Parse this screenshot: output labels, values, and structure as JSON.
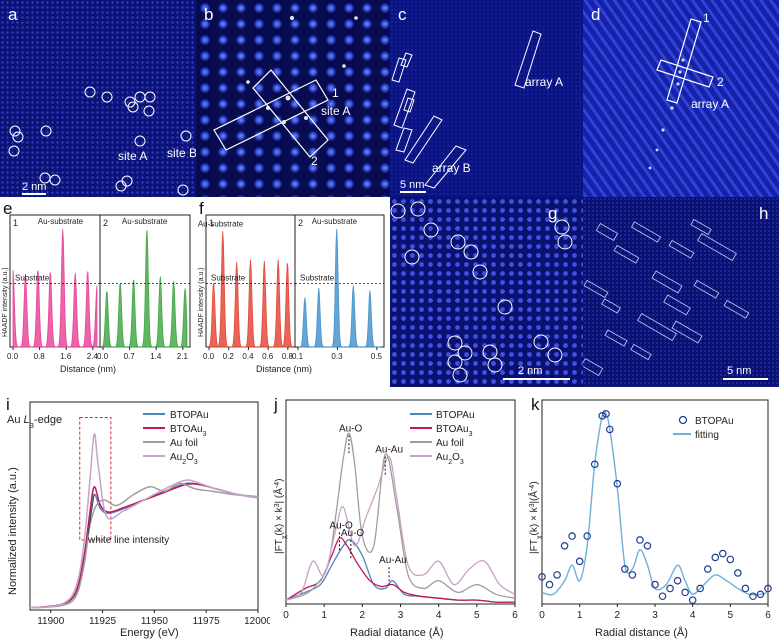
{
  "panels": {
    "a": {
      "letter": "a",
      "scale_bar": "2 nm",
      "labels": [
        "site A",
        "site B"
      ]
    },
    "b": {
      "letter": "b",
      "labels": [
        "1",
        "site A",
        "2"
      ]
    },
    "c": {
      "letter": "c",
      "scale_bar": "5 nm",
      "labels": [
        "array A",
        "array B"
      ]
    },
    "d": {
      "letter": "d",
      "labels": [
        "1",
        "2",
        "array A"
      ]
    },
    "g": {
      "letter": "g",
      "scale_bar": "2 nm"
    },
    "h": {
      "letter": "h",
      "scale_bar": "5 nm"
    }
  },
  "colors": {
    "btopau": "#4a86b8",
    "btoau3": "#c2185b",
    "au_foil": "#9e9e9e",
    "au2o3": "#c8a2c8",
    "pink": "#e8489a",
    "green": "#46a84a",
    "red": "#e34a3c",
    "blue": "#4a95cc",
    "micro_bg": "#0c1277"
  },
  "chart_data": [
    {
      "panel": "e",
      "type": "area",
      "ylabel": "HAADF intensity (a.u.)",
      "xlabel": "Distance (nm)",
      "subplots": [
        {
          "index_label": "1",
          "color": "pink",
          "xticks": [
            "0.0",
            "0.8",
            "1.6",
            "2.4"
          ],
          "xlim": [
            0,
            2.7
          ],
          "peak_x": [
            0.0,
            0.4,
            0.8,
            1.2,
            1.6,
            2.0,
            2.4,
            2.7
          ],
          "peak_y": [
            0.65,
            0.62,
            0.66,
            0.64,
            1.0,
            0.63,
            0.65,
            0.52
          ],
          "annotations": [
            "Au-substrate",
            "Substrate"
          ]
        },
        {
          "index_label": "2",
          "color": "green",
          "xticks": [
            "0.0",
            "0.7",
            "1.4",
            "2.1"
          ],
          "xlim": [
            0,
            2.2
          ],
          "peak_x": [
            0.1,
            0.45,
            0.8,
            1.15,
            1.5,
            1.85,
            2.15
          ],
          "peak_y": [
            0.48,
            0.55,
            0.58,
            1.0,
            0.6,
            0.56,
            0.5
          ],
          "annotations": [
            "Au-substrate"
          ]
        }
      ]
    },
    {
      "panel": "f",
      "type": "area",
      "ylabel": "HAADF intensity (a.u.)",
      "xlabel": "Distance (nm)",
      "subplots": [
        {
          "index_label": "1",
          "color": "red",
          "xticks": [
            "0.0",
            "0.2",
            "0.4",
            "0.6",
            "0.8"
          ],
          "xlim": [
            0,
            0.9
          ],
          "peak_x": [
            0.05,
            0.15,
            0.3,
            0.45,
            0.6,
            0.75,
            0.85
          ],
          "peak_y": [
            0.55,
            0.98,
            0.72,
            0.74,
            0.73,
            0.74,
            0.72
          ],
          "annotations": [
            "Au-substrate",
            "Substrate"
          ]
        },
        {
          "index_label": "2",
          "color": "blue",
          "xticks": [
            "0.1",
            "0.3",
            "0.5"
          ],
          "xlim": [
            0,
            0.6
          ],
          "peak_x": [
            0.05,
            0.15,
            0.28,
            0.4,
            0.52
          ],
          "peak_y": [
            0.42,
            0.5,
            1.0,
            0.52,
            0.48
          ],
          "annotations": [
            "Au-substrate",
            "Substrate"
          ]
        }
      ]
    },
    {
      "panel": "i",
      "type": "line",
      "xlabel": "Energy (eV)",
      "ylabel": "Normalized intensity (a.u.)",
      "title_prefix": "Au ",
      "title_L": "L",
      "title_sub": "3",
      "title_suffix": "-edge",
      "xlim": [
        11890,
        12000
      ],
      "xticks": [
        "11900",
        "11925",
        "11950",
        "11975",
        "12000"
      ],
      "annotation": "white line intensity",
      "series": [
        {
          "name": "BTOPAu",
          "color": "btopau",
          "x": [
            11890,
            11905,
            11912,
            11916,
            11919,
            11921,
            11924,
            11928,
            11935,
            11945,
            11955,
            11965,
            11972,
            11980,
            11990,
            12000
          ],
          "y": [
            0.02,
            0.05,
            0.15,
            0.45,
            0.85,
            1.05,
            0.92,
            0.88,
            0.92,
            1.0,
            1.08,
            1.15,
            1.14,
            1.1,
            1.05,
            1.02
          ]
        },
        {
          "name": "BTOAu",
          "name_sub": "3",
          "color": "btoau3",
          "x": [
            11890,
            11905,
            11912,
            11916,
            11919,
            11921,
            11924,
            11928,
            11935,
            11945,
            11955,
            11965,
            11972,
            11980,
            11990,
            12000
          ],
          "y": [
            0.02,
            0.05,
            0.16,
            0.48,
            0.9,
            1.12,
            0.95,
            0.89,
            0.93,
            1.0,
            1.07,
            1.14,
            1.14,
            1.1,
            1.05,
            1.03
          ]
        },
        {
          "name": "Au foil",
          "color": "au_foil",
          "x": [
            11890,
            11905,
            11912,
            11916,
            11919,
            11922,
            11926,
            11932,
            11940,
            11948,
            11955,
            11962,
            11970,
            11978,
            11988,
            12000
          ],
          "y": [
            0.02,
            0.04,
            0.12,
            0.4,
            0.78,
            0.95,
            1.0,
            0.95,
            1.05,
            1.12,
            1.08,
            1.15,
            1.1,
            1.08,
            1.05,
            1.03
          ]
        },
        {
          "name": "Au",
          "name_sub": "2",
          "name_suffix": "O",
          "name_suffix_sub": "3",
          "color": "au2o3",
          "x": [
            11890,
            11905,
            11912,
            11916,
            11919,
            11921,
            11923,
            11927,
            11935,
            11945,
            11955,
            11965,
            11972,
            11980,
            11990,
            12000
          ],
          "y": [
            0.02,
            0.05,
            0.2,
            0.6,
            1.2,
            1.6,
            1.3,
            0.85,
            0.9,
            1.0,
            1.1,
            1.18,
            1.15,
            1.1,
            1.05,
            1.02
          ]
        }
      ],
      "ylim": [
        0,
        1.8
      ]
    },
    {
      "panel": "j",
      "type": "line",
      "xlabel": "Radial diatance (Å)",
      "ylabel_prefix": "|FT",
      "ylabel_mid": "χ",
      "ylabel_rest": "(k) × k",
      "ylabel_sup": "3",
      "ylabel_end": "| (Å",
      "ylabel_sup2": "-4",
      "ylabel_close": ")",
      "xlim": [
        0,
        6
      ],
      "xticks": [
        "0",
        "1",
        "2",
        "3",
        "4",
        "5",
        "6"
      ],
      "ylim": [
        0,
        1.0
      ],
      "annotations": [
        {
          "text": "Au-O",
          "x": 1.65,
          "y": 0.88
        },
        {
          "text": "Au-Au",
          "x": 2.6,
          "y": 0.77
        },
        {
          "text": "Au-O",
          "x": 1.4,
          "y": 0.38
        },
        {
          "text": "Au-O",
          "x": 1.7,
          "y": 0.34
        },
        {
          "text": "Au-Au",
          "x": 2.7,
          "y": 0.2
        }
      ],
      "series": [
        {
          "name": "BTOPAu",
          "color": "btopau",
          "x": [
            0,
            0.5,
            0.9,
            1.2,
            1.5,
            1.7,
            2.0,
            2.3,
            2.6,
            2.8,
            3.1,
            3.5,
            4.0,
            4.5,
            5.0,
            5.5,
            6.0
          ],
          "y": [
            0.02,
            0.06,
            0.1,
            0.2,
            0.3,
            0.33,
            0.25,
            0.1,
            0.08,
            0.12,
            0.05,
            0.04,
            0.03,
            0.02,
            0.02,
            0.01,
            0.01
          ]
        },
        {
          "name": "BTOAu",
          "name_sub": "3",
          "color": "btoau3",
          "x": [
            0,
            0.5,
            0.9,
            1.2,
            1.4,
            1.6,
            1.9,
            2.2,
            2.5,
            2.8,
            3.1,
            3.5,
            4.0,
            4.5,
            5.0,
            5.5,
            6.0
          ],
          "y": [
            0.02,
            0.08,
            0.12,
            0.25,
            0.34,
            0.3,
            0.2,
            0.12,
            0.09,
            0.1,
            0.06,
            0.04,
            0.03,
            0.02,
            0.02,
            0.01,
            0.01
          ]
        },
        {
          "name": "Au foil",
          "color": "au_foil",
          "x": [
            0,
            0.5,
            0.8,
            1.1,
            1.3,
            1.5,
            1.65,
            1.8,
            2.0,
            2.3,
            2.6,
            2.9,
            3.2,
            3.6,
            4.0,
            4.5,
            5.0,
            5.5,
            6.0
          ],
          "y": [
            0.02,
            0.05,
            0.1,
            0.2,
            0.45,
            0.75,
            0.88,
            0.72,
            0.35,
            0.3,
            0.77,
            0.5,
            0.15,
            0.08,
            0.12,
            0.06,
            0.1,
            0.05,
            0.03
          ]
        },
        {
          "name": "Au",
          "name_sub": "2",
          "name_suffix": "O",
          "name_suffix_sub": "3",
          "color": "au2o3",
          "x": [
            0,
            0.4,
            0.7,
            1.0,
            1.3,
            1.5,
            1.8,
            2.1,
            2.4,
            2.7,
            2.9,
            3.2,
            3.6,
            4.0,
            4.4,
            4.8,
            5.2,
            5.6,
            6.0
          ],
          "y": [
            0.02,
            0.06,
            0.22,
            0.15,
            0.38,
            0.5,
            0.3,
            0.45,
            0.6,
            0.76,
            0.55,
            0.2,
            0.15,
            0.22,
            0.1,
            0.18,
            0.22,
            0.1,
            0.05
          ]
        }
      ]
    },
    {
      "panel": "k",
      "type": "scatter",
      "xlabel": "Radial distance (Å)",
      "ylabel_prefix": "|FT",
      "ylabel_mid": "χ",
      "ylabel_rest": "(k) × k",
      "ylabel_sup": "3",
      "ylabel_end": "|(Å",
      "ylabel_sup2": "-4",
      "ylabel_close": ")",
      "xlim": [
        0,
        6
      ],
      "xticks": [
        "0",
        "1",
        "2",
        "3",
        "4",
        "5",
        "6"
      ],
      "ylim": [
        0,
        1.0
      ],
      "series": [
        {
          "name": "BTOPAu",
          "color": "#1f3f8f",
          "marker": "circle",
          "x": [
            0.0,
            0.2,
            0.4,
            0.6,
            0.8,
            1.0,
            1.2,
            1.4,
            1.6,
            1.7,
            1.8,
            2.0,
            2.2,
            2.4,
            2.6,
            2.8,
            3.0,
            3.2,
            3.4,
            3.6,
            3.8,
            4.0,
            4.2,
            4.4,
            4.6,
            4.8,
            5.0,
            5.2,
            5.4,
            5.6,
            5.8,
            6.0
          ],
          "y": [
            0.14,
            0.1,
            0.15,
            0.3,
            0.35,
            0.22,
            0.35,
            0.72,
            0.97,
            0.98,
            0.9,
            0.62,
            0.18,
            0.15,
            0.33,
            0.3,
            0.1,
            0.04,
            0.08,
            0.12,
            0.06,
            0.02,
            0.08,
            0.18,
            0.24,
            0.26,
            0.23,
            0.16,
            0.08,
            0.04,
            0.05,
            0.08
          ]
        },
        {
          "name": "fitting",
          "color": "#6fb0d8",
          "marker": "line",
          "x": [
            0.0,
            0.3,
            0.6,
            0.8,
            1.0,
            1.2,
            1.4,
            1.6,
            1.7,
            1.8,
            2.0,
            2.2,
            2.4,
            2.6,
            2.8,
            3.0,
            3.3,
            3.6,
            3.8,
            4.0,
            4.3,
            4.6,
            4.9,
            5.2,
            5.5,
            5.8,
            6.0
          ],
          "y": [
            0.06,
            0.05,
            0.12,
            0.2,
            0.12,
            0.3,
            0.72,
            0.97,
            0.98,
            0.9,
            0.6,
            0.2,
            0.18,
            0.28,
            0.2,
            0.08,
            0.1,
            0.2,
            0.12,
            0.05,
            0.1,
            0.15,
            0.12,
            0.08,
            0.05,
            0.05,
            0.06
          ]
        }
      ]
    }
  ]
}
